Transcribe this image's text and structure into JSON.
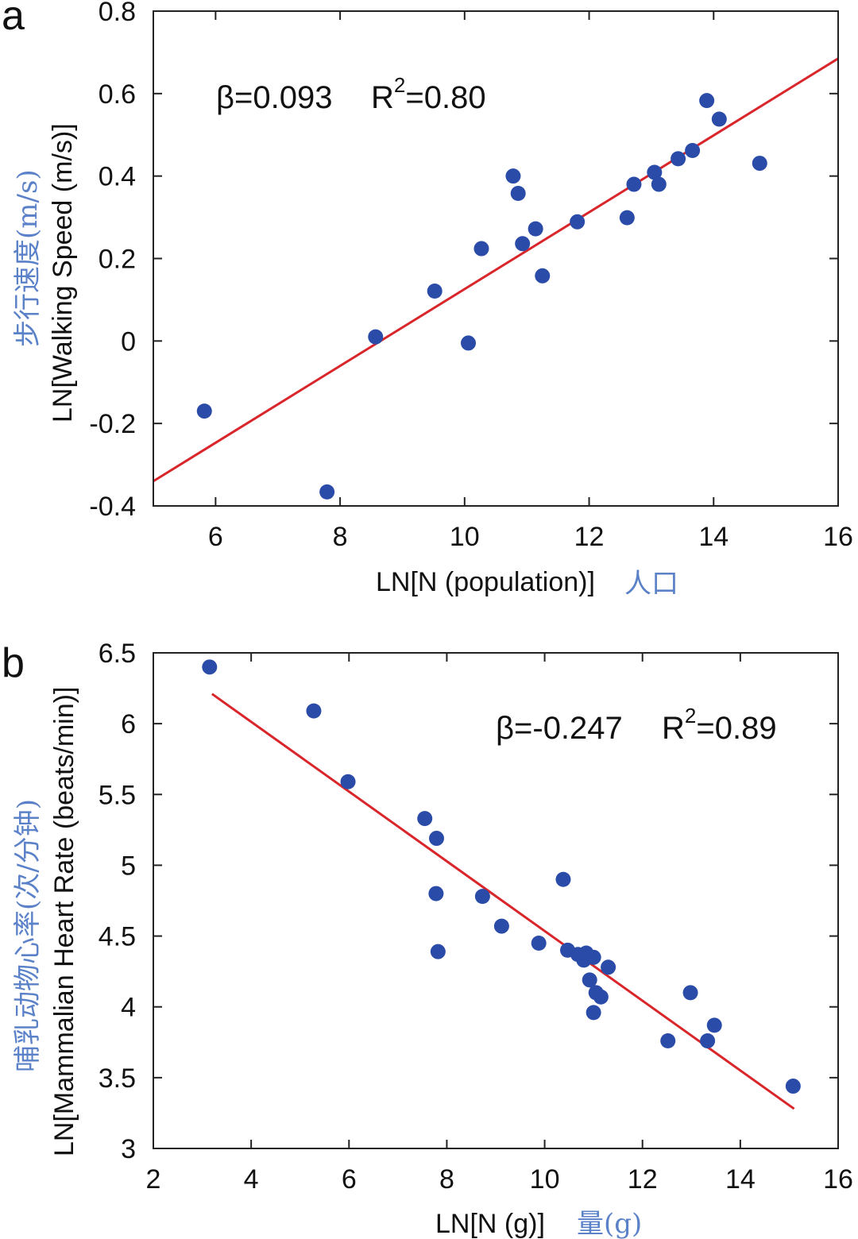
{
  "chart_data": [
    {
      "type": "scatter",
      "panel_label": "a",
      "xlim": [
        5,
        16
      ],
      "ylim": [
        -0.4,
        0.8
      ],
      "xticks": [
        "6",
        "8",
        "10",
        "12",
        "14",
        "16"
      ],
      "xtick_values": [
        6,
        8,
        10,
        12,
        14,
        16
      ],
      "yticks": [
        "-0.4",
        "-0.2",
        "0",
        "0.2",
        "0.4",
        "0.6",
        "0.8"
      ],
      "ytick_values": [
        -0.4,
        -0.2,
        0,
        0.2,
        0.4,
        0.6,
        0.8
      ],
      "xlabel": "LN[N (population)]",
      "xlabel_cn": "人口",
      "ylabel": "LN[Walking Speed (m/s)]",
      "ylabel_cn": "步行速度(m/s)",
      "beta_text": "β=0.093",
      "r2_prefix": "R",
      "r2_sup": "2",
      "r2_value": "=0.80",
      "fit_line": {
        "x": [
          5,
          16
        ],
        "y": [
          -0.34,
          0.685
        ]
      },
      "points": [
        {
          "x": 5.82,
          "y": -0.17
        },
        {
          "x": 7.79,
          "y": -0.366
        },
        {
          "x": 8.57,
          "y": 0.01
        },
        {
          "x": 9.52,
          "y": 0.121
        },
        {
          "x": 10.06,
          "y": -0.005
        },
        {
          "x": 10.27,
          "y": 0.224
        },
        {
          "x": 10.78,
          "y": 0.4
        },
        {
          "x": 10.86,
          "y": 0.358
        },
        {
          "x": 10.93,
          "y": 0.236
        },
        {
          "x": 11.14,
          "y": 0.272
        },
        {
          "x": 11.25,
          "y": 0.158
        },
        {
          "x": 11.81,
          "y": 0.289
        },
        {
          "x": 12.61,
          "y": 0.299
        },
        {
          "x": 12.72,
          "y": 0.38
        },
        {
          "x": 13.05,
          "y": 0.409
        },
        {
          "x": 13.12,
          "y": 0.38
        },
        {
          "x": 13.43,
          "y": 0.442
        },
        {
          "x": 13.66,
          "y": 0.462
        },
        {
          "x": 13.89,
          "y": 0.583
        },
        {
          "x": 14.09,
          "y": 0.538
        },
        {
          "x": 14.74,
          "y": 0.431
        }
      ]
    },
    {
      "type": "scatter",
      "panel_label": "b",
      "xlim": [
        2,
        16
      ],
      "ylim": [
        3,
        6.5
      ],
      "xticks": [
        "2",
        "4",
        "6",
        "8",
        "10",
        "12",
        "14",
        "16"
      ],
      "xtick_values": [
        2,
        4,
        6,
        8,
        10,
        12,
        14,
        16
      ],
      "yticks": [
        "3",
        "3.5",
        "4",
        "4.5",
        "5",
        "5.5",
        "6",
        "6.5"
      ],
      "ytick_values": [
        3,
        3.5,
        4,
        4.5,
        5,
        5.5,
        6,
        6.5
      ],
      "xlabel": "LN[N (g)]",
      "xlabel_cn": "量(g)",
      "ylabel": "LN[Mammalian Heart Rate (beats/min)]",
      "ylabel_cn": "哺乳动物心率(次/分钟)",
      "beta_text": "β=-0.247",
      "r2_prefix": "R",
      "r2_sup": "2",
      "r2_value": "=0.89",
      "fit_line": {
        "x": [
          3.2,
          15.1
        ],
        "y": [
          6.21,
          3.28
        ]
      },
      "points": [
        {
          "x": 3.15,
          "y": 6.4
        },
        {
          "x": 5.28,
          "y": 6.09
        },
        {
          "x": 5.98,
          "y": 5.59
        },
        {
          "x": 7.55,
          "y": 5.33
        },
        {
          "x": 7.79,
          "y": 5.19
        },
        {
          "x": 7.78,
          "y": 4.8
        },
        {
          "x": 7.82,
          "y": 4.39
        },
        {
          "x": 8.73,
          "y": 4.78
        },
        {
          "x": 9.12,
          "y": 4.57
        },
        {
          "x": 9.88,
          "y": 4.45
        },
        {
          "x": 10.38,
          "y": 4.9
        },
        {
          "x": 10.47,
          "y": 4.4
        },
        {
          "x": 10.68,
          "y": 4.37
        },
        {
          "x": 10.8,
          "y": 4.33
        },
        {
          "x": 10.85,
          "y": 4.38
        },
        {
          "x": 11.0,
          "y": 4.35
        },
        {
          "x": 10.92,
          "y": 4.19
        },
        {
          "x": 11.05,
          "y": 4.1
        },
        {
          "x": 11.15,
          "y": 4.07
        },
        {
          "x": 11.3,
          "y": 4.28
        },
        {
          "x": 11.0,
          "y": 3.96
        },
        {
          "x": 12.52,
          "y": 3.76
        },
        {
          "x": 12.98,
          "y": 4.1
        },
        {
          "x": 13.33,
          "y": 3.76
        },
        {
          "x": 13.47,
          "y": 3.87
        },
        {
          "x": 15.08,
          "y": 3.44
        }
      ]
    }
  ]
}
